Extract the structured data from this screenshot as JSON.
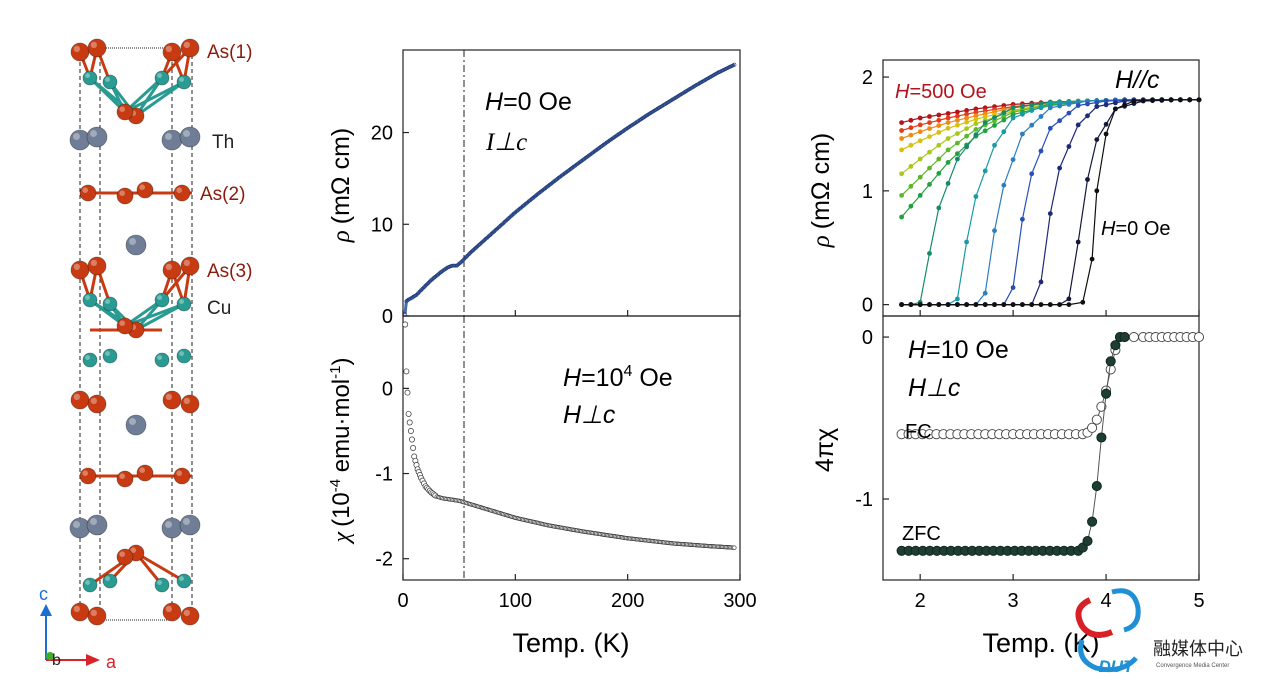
{
  "structure": {
    "labels": {
      "as1": "As(1)",
      "th": "Th",
      "as2": "As(2)",
      "as3": "As(3)",
      "cu": "Cu"
    },
    "axes": {
      "c": "c",
      "b": "b",
      "a": "a"
    },
    "colors": {
      "as": "#c83b12",
      "cu": "#2a9b93",
      "th": "#6f7e96",
      "label_as": "#8b1a0a",
      "axis_c": "#1b6fd1",
      "axis_a": "#d9232a",
      "axis_b": "#3fae2a"
    }
  },
  "panels": {
    "mid_top": {
      "ylabel_sym": "ρ",
      "ylabel_unit": "(mΩ cm)",
      "ann1_pre": "H",
      "ann1_post": "=0 Oe",
      "ann2": "I⊥c",
      "yticks": [
        "0",
        "10",
        "20"
      ]
    },
    "mid_bottom": {
      "ylabel_sym": "χ",
      "ylabel_pre": "(10",
      "ylabel_exp": "-4",
      "ylabel_mid": " emu·mol",
      "ylabel_exp2": "-1",
      "ylabel_post": ")",
      "ann1_pre": "H",
      "ann1_mid": "=10",
      "ann1_exp": "4",
      "ann1_post": " Oe",
      "ann2": "H⊥c",
      "yticks": [
        "0",
        "-1",
        "-2"
      ],
      "xticks": [
        "0",
        "100",
        "200",
        "300"
      ],
      "xlabel": "Temp. (K)"
    },
    "right_top": {
      "ylabel_sym": "ρ",
      "ylabel_unit": "(mΩ cm)",
      "ann_field_pre": "H",
      "ann_field_post": "=500 Oe",
      "ann_dir": "H//c",
      "ann_zero_pre": "H",
      "ann_zero_post": "=0 Oe",
      "yticks": [
        "0",
        "1",
        "2"
      ]
    },
    "right_bottom": {
      "ylabel": "4πχ",
      "ann1_pre": "H",
      "ann1_post": "=10 Oe",
      "ann2": "H⊥c",
      "fc_label": "FC",
      "zfc_label": "ZFC",
      "yticks": [
        "0",
        "-1"
      ],
      "xticks": [
        "2",
        "3",
        "4",
        "5"
      ],
      "xlabel": "Temp. (K)"
    }
  },
  "watermark": {
    "text": "融媒体中心",
    "sub": "Convergence Media Center",
    "logo": "DUT"
  },
  "chart_data": [
    {
      "type": "line",
      "name": "resistivity_vs_T",
      "xlim": [
        0,
        300
      ],
      "ylim": [
        0,
        29
      ],
      "x": [
        1.8,
        3,
        5,
        8,
        12,
        16,
        20,
        25,
        30,
        35,
        40,
        44,
        48,
        52,
        56,
        60,
        70,
        80,
        100,
        120,
        140,
        160,
        180,
        200,
        220,
        240,
        260,
        280,
        295
      ],
      "y": [
        0.2,
        1.6,
        1.8,
        2.0,
        2.3,
        2.8,
        3.3,
        3.9,
        4.4,
        4.9,
        5.3,
        5.5,
        5.5,
        5.9,
        6.4,
        6.9,
        8.0,
        9.1,
        11.3,
        13.3,
        15.2,
        17.0,
        18.8,
        20.5,
        22.1,
        23.6,
        25.1,
        26.5,
        27.4
      ],
      "vline_x": 48
    },
    {
      "type": "scatter",
      "name": "susceptibility_vs_T",
      "xlim": [
        0,
        300
      ],
      "ylim": [
        -2.25,
        0.85
      ],
      "x": [
        2,
        3,
        5,
        8,
        10,
        13,
        16,
        20,
        25,
        30,
        35,
        40,
        45,
        50,
        60,
        80,
        100,
        130,
        160,
        200,
        240,
        270,
        295
      ],
      "y": [
        0.75,
        0.2,
        -0.3,
        -0.6,
        -0.8,
        -0.95,
        -1.05,
        -1.15,
        -1.22,
        -1.27,
        -1.29,
        -1.3,
        -1.31,
        -1.32,
        -1.36,
        -1.44,
        -1.52,
        -1.61,
        -1.68,
        -1.76,
        -1.82,
        -1.85,
        -1.87
      ],
      "vline_x": 48
    },
    {
      "type": "line",
      "name": "resistivity_low_T_fields",
      "xlim": [
        1.6,
        5.0
      ],
      "ylim": [
        -0.1,
        2.15
      ],
      "series": [
        {
          "color": "#b3141b",
          "x": [
            1.8,
            2.0,
            2.3,
            2.6,
            3.0,
            3.4,
            3.8,
            4.2,
            4.6,
            5.0
          ],
          "y": [
            1.6,
            1.64,
            1.68,
            1.72,
            1.76,
            1.78,
            1.79,
            1.8,
            1.8,
            1.8
          ]
        },
        {
          "color": "#e23c1a",
          "x": [
            1.8,
            2.0,
            2.3,
            2.6,
            3.0,
            3.4,
            3.8,
            4.2,
            4.6,
            5.0
          ],
          "y": [
            1.53,
            1.58,
            1.64,
            1.69,
            1.74,
            1.77,
            1.79,
            1.8,
            1.8,
            1.8
          ]
        },
        {
          "color": "#f08a14",
          "x": [
            1.8,
            2.0,
            2.3,
            2.6,
            3.0,
            3.4,
            3.8,
            4.2,
            4.6,
            5.0
          ],
          "y": [
            1.46,
            1.52,
            1.6,
            1.66,
            1.73,
            1.77,
            1.79,
            1.8,
            1.8,
            1.8
          ]
        },
        {
          "color": "#d6c010",
          "x": [
            1.8,
            2.0,
            2.3,
            2.6,
            3.0,
            3.4,
            3.8,
            4.2,
            4.6,
            5.0
          ],
          "y": [
            1.36,
            1.44,
            1.55,
            1.63,
            1.71,
            1.76,
            1.79,
            1.8,
            1.8,
            1.8
          ]
        },
        {
          "color": "#a8c81e",
          "x": [
            1.8,
            2.0,
            2.3,
            2.6,
            3.0,
            3.4,
            3.8,
            4.2,
            4.6,
            5.0
          ],
          "y": [
            1.15,
            1.28,
            1.46,
            1.59,
            1.7,
            1.76,
            1.79,
            1.8,
            1.8,
            1.8
          ]
        },
        {
          "color": "#5cb82a",
          "x": [
            1.8,
            2.0,
            2.3,
            2.6,
            3.0,
            3.4,
            3.8,
            4.2,
            4.6,
            5.0
          ],
          "y": [
            0.96,
            1.12,
            1.36,
            1.54,
            1.69,
            1.76,
            1.79,
            1.8,
            1.8,
            1.8
          ]
        },
        {
          "color": "#22a040",
          "x": [
            1.8,
            2.0,
            2.3,
            2.6,
            3.0,
            3.4,
            3.8,
            4.2,
            4.6,
            5.0
          ],
          "y": [
            0.77,
            0.96,
            1.25,
            1.48,
            1.67,
            1.75,
            1.79,
            1.8,
            1.8,
            1.8
          ]
        },
        {
          "color": "#158a6a",
          "x": [
            1.8,
            1.9,
            2.0,
            2.1,
            2.2,
            2.4,
            2.7,
            3.0,
            3.4,
            3.8,
            4.2,
            4.6,
            5.0
          ],
          "y": [
            0.0,
            0.0,
            0.02,
            0.45,
            0.85,
            1.28,
            1.6,
            1.73,
            1.78,
            1.79,
            1.8,
            1.8,
            1.8
          ]
        },
        {
          "color": "#1a9aa8",
          "x": [
            1.8,
            2.1,
            2.3,
            2.4,
            2.5,
            2.6,
            2.8,
            3.0,
            3.4,
            3.8,
            4.2,
            4.6,
            5.0
          ],
          "y": [
            0.0,
            0.0,
            0.0,
            0.05,
            0.55,
            0.95,
            1.4,
            1.64,
            1.77,
            1.79,
            1.8,
            1.8,
            1.8
          ]
        },
        {
          "color": "#2a7fc0",
          "x": [
            1.8,
            2.3,
            2.6,
            2.7,
            2.8,
            2.9,
            3.1,
            3.4,
            3.8,
            4.2,
            4.6,
            5.0
          ],
          "y": [
            0.0,
            0.0,
            0.0,
            0.1,
            0.65,
            1.05,
            1.5,
            1.73,
            1.79,
            1.8,
            1.8,
            1.8
          ]
        },
        {
          "color": "#2650b8",
          "x": [
            1.8,
            2.6,
            2.9,
            3.0,
            3.1,
            3.2,
            3.4,
            3.7,
            4.0,
            4.4,
            4.8,
            5.0
          ],
          "y": [
            0.0,
            0.0,
            0.0,
            0.15,
            0.75,
            1.15,
            1.55,
            1.75,
            1.79,
            1.8,
            1.8,
            1.8
          ]
        },
        {
          "color": "#1c2a78",
          "x": [
            1.8,
            2.8,
            3.2,
            3.3,
            3.4,
            3.5,
            3.7,
            3.9,
            4.2,
            4.6,
            5.0
          ],
          "y": [
            0.0,
            0.0,
            0.0,
            0.2,
            0.8,
            1.2,
            1.58,
            1.74,
            1.79,
            1.8,
            1.8
          ]
        },
        {
          "color": "#14183c",
          "x": [
            1.8,
            3.0,
            3.5,
            3.6,
            3.7,
            3.8,
            3.9,
            4.1,
            4.4,
            4.8,
            5.0
          ],
          "y": [
            0.0,
            0.0,
            0.0,
            0.05,
            0.55,
            1.1,
            1.45,
            1.72,
            1.79,
            1.8,
            1.8
          ]
        },
        {
          "color": "#101010",
          "x": [
            1.8,
            3.0,
            3.6,
            3.75,
            3.85,
            3.9,
            4.0,
            4.1,
            4.3,
            4.6,
            5.0
          ],
          "y": [
            0.0,
            0.0,
            0.0,
            0.02,
            0.4,
            1.0,
            1.5,
            1.72,
            1.79,
            1.8,
            1.8
          ]
        }
      ]
    },
    {
      "type": "scatter",
      "name": "susceptibility_FC_ZFC",
      "xlim": [
        1.6,
        5.0
      ],
      "ylim": [
        -1.5,
        0.13
      ],
      "series": [
        {
          "name": "FC",
          "x": [
            1.8,
            3.75,
            3.8,
            3.85,
            3.9,
            3.95,
            4.0,
            4.05,
            4.1,
            4.15,
            4.2,
            4.3,
            4.4,
            4.6,
            4.8,
            5.0
          ],
          "y": [
            -0.6,
            -0.6,
            -0.59,
            -0.56,
            -0.51,
            -0.43,
            -0.33,
            -0.2,
            -0.08,
            0.0,
            0.0,
            0.0,
            0.0,
            0.0,
            0.0,
            0.0
          ]
        },
        {
          "name": "ZFC",
          "x": [
            1.8,
            3.7,
            3.75,
            3.8,
            3.85,
            3.9,
            3.95,
            4.0,
            4.05,
            4.1,
            4.15,
            4.2
          ],
          "y": [
            -1.32,
            -1.32,
            -1.3,
            -1.26,
            -1.14,
            -0.92,
            -0.62,
            -0.35,
            -0.15,
            -0.05,
            0.0,
            0.0
          ]
        }
      ]
    }
  ]
}
